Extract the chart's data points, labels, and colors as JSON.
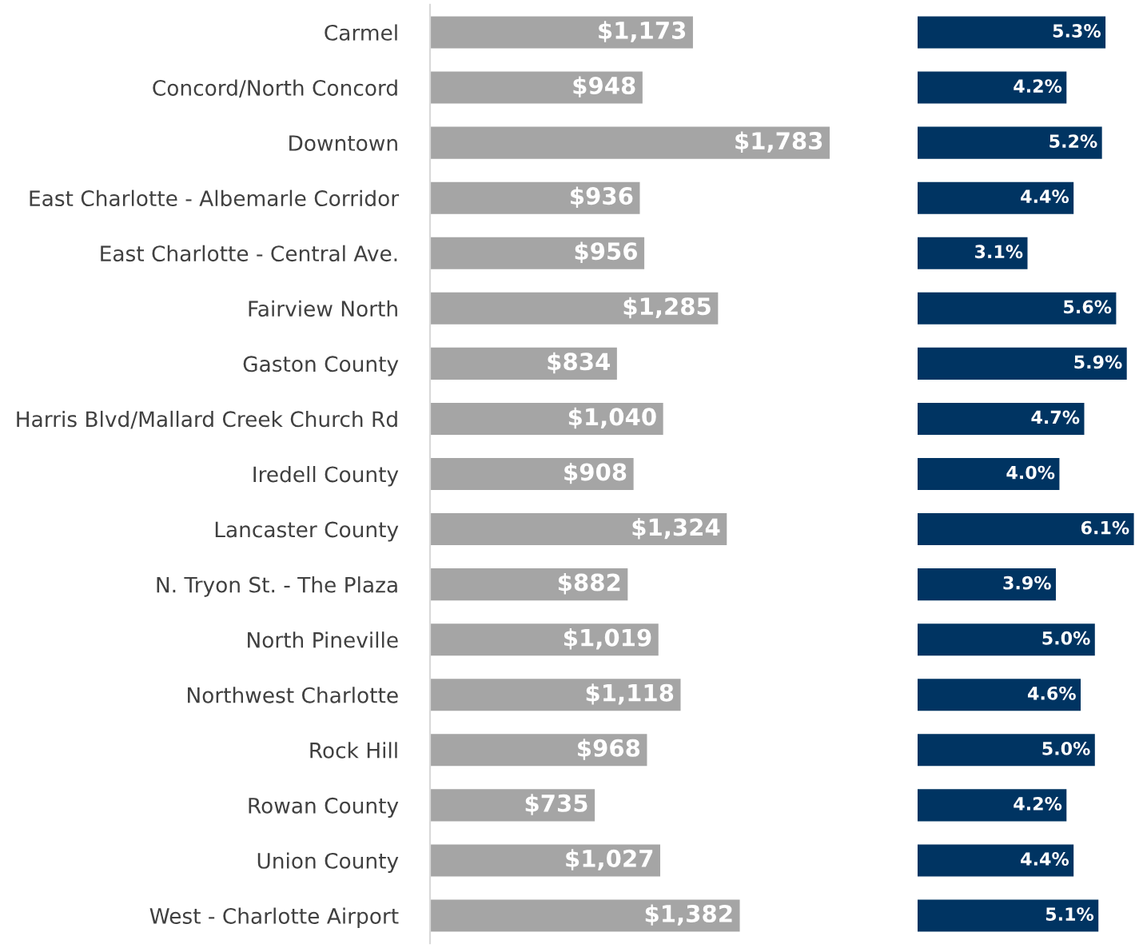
{
  "chart_data": [
    {
      "type": "bar",
      "orientation": "horizontal",
      "categories": [
        "Carmel",
        "Concord/North Concord",
        "Downtown",
        "East Charlotte - Albemarle Corridor",
        "East Charlotte - Central Ave.",
        "Fairview North",
        "Gaston County",
        "Harris Blvd/Mallard Creek Church Rd",
        "Iredell County",
        "Lancaster County",
        "N. Tryon St. - The Plaza",
        "North Pineville",
        "Northwest Charlotte",
        "Rock Hill",
        "Rowan County",
        "Union County",
        "West - Charlotte Airport"
      ],
      "values": [
        1173,
        948,
        1783,
        936,
        956,
        1285,
        834,
        1040,
        908,
        1324,
        882,
        1019,
        1118,
        968,
        735,
        1027,
        1382
      ],
      "value_labels": [
        "$1,173",
        "$948",
        "$1,783",
        "$936",
        "$956",
        "$1,285",
        "$834",
        "$1,040",
        "$908",
        "$1,324",
        "$882",
        "$1,019",
        "$1,118",
        "$968",
        "$735",
        "$1,027",
        "$1,382"
      ],
      "color": "#a5a5a5",
      "tick_labels": "y"
    },
    {
      "type": "bar",
      "orientation": "horizontal",
      "values": [
        5.3,
        4.2,
        5.2,
        4.4,
        3.1,
        5.6,
        5.9,
        4.7,
        4.0,
        6.1,
        3.9,
        5.0,
        4.6,
        5.0,
        4.2,
        4.4,
        5.1
      ],
      "value_labels": [
        "5.3%",
        "4.2%",
        "5.2%",
        "4.4%",
        "3.1%",
        "5.6%",
        "5.9%",
        "4.7%",
        "4.0%",
        "6.1%",
        "3.9%",
        "5.0%",
        "4.6%",
        "5.0%",
        "4.2%",
        "4.4%",
        "5.1%"
      ],
      "color": "#003462",
      "tick_labels": false
    }
  ]
}
